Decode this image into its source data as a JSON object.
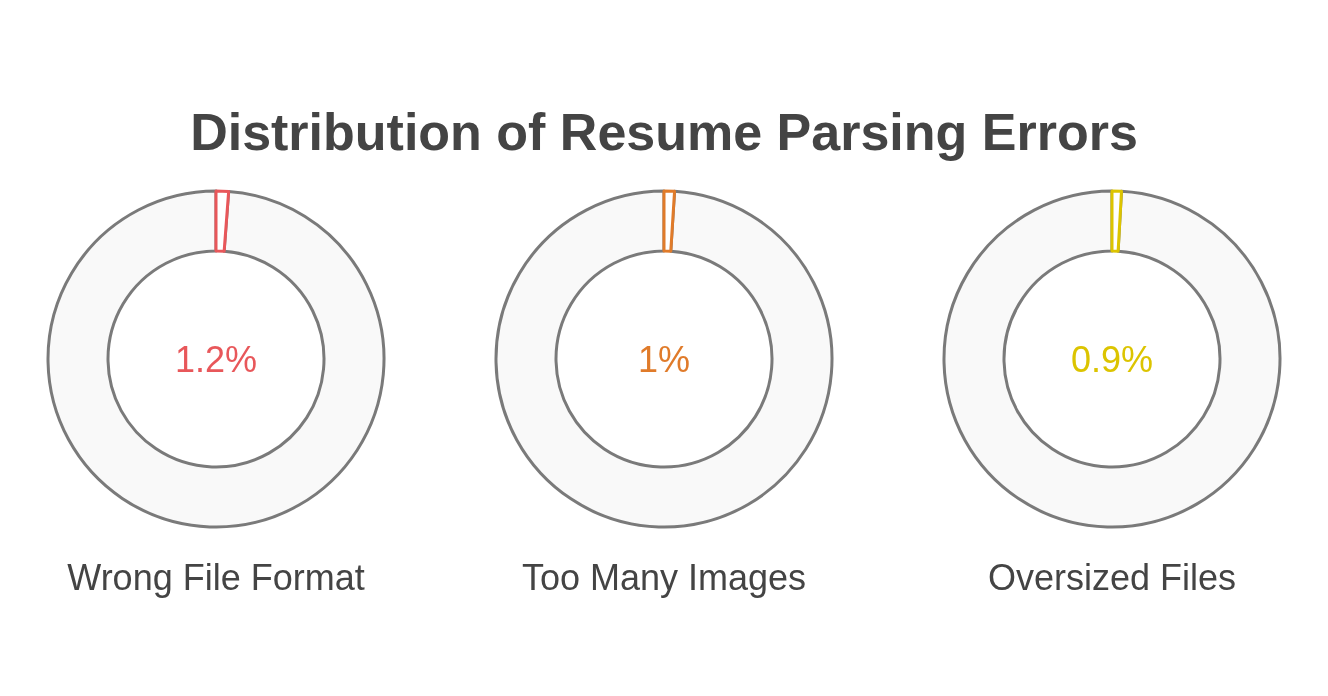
{
  "chart_data": [
    {
      "type": "donut",
      "title": "Distribution of Resume Parsing Errors",
      "xlabel": "Wrong File Format",
      "categories": [
        null,
        null
      ],
      "values": [
        1.2,
        98.8
      ],
      "colors": [
        "#e8575a",
        "#f9f9f9"
      ],
      "annotations": [
        "1.2%"
      ]
    },
    {
      "type": "donut",
      "xlabel": "Too Many Images",
      "categories": [
        null,
        null
      ],
      "values": [
        1,
        99
      ],
      "colors": [
        "#e07b2a",
        "#f9f9f9"
      ],
      "annotations": [
        "1%"
      ]
    },
    {
      "type": "donut",
      "xlabel": "Oversized Files",
      "categories": [
        null,
        null
      ],
      "values": [
        0.9,
        99.1
      ],
      "colors": [
        "#dcc400",
        "#f9f9f9"
      ],
      "annotations": [
        "0.9%"
      ]
    }
  ]
}
